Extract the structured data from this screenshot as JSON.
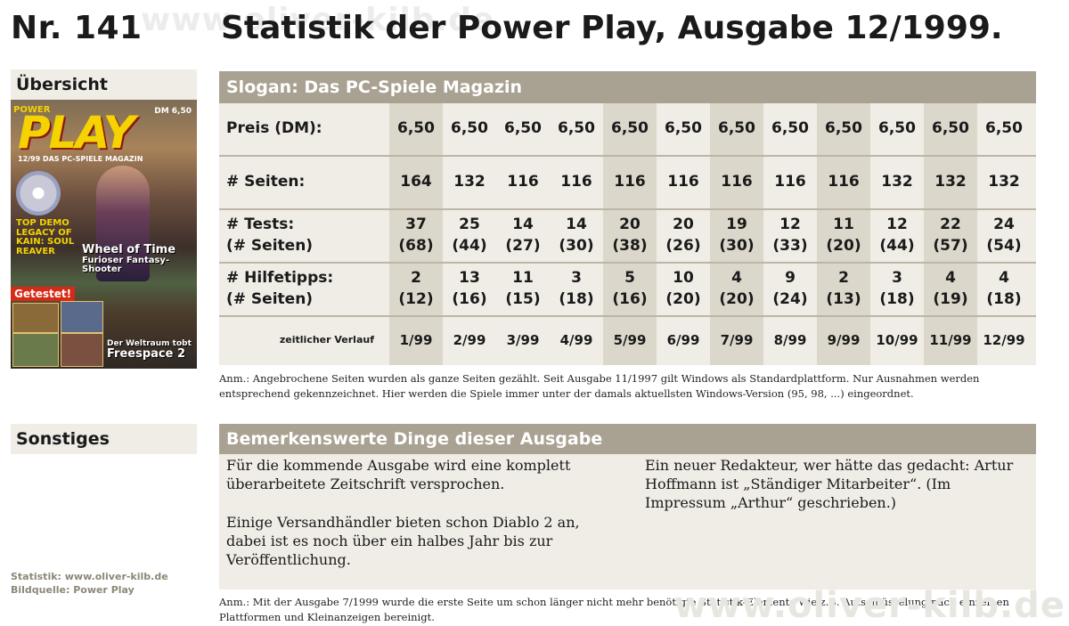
{
  "header": {
    "number": "Nr. 141",
    "title": "Statistik der Power Play, Ausgabe 12/1999.",
    "watermark": "www.oliver-kilb.de"
  },
  "sidebar": {
    "overview_label": "Übersicht",
    "misc_label": "Sonstiges",
    "cover": {
      "magazine_small": "POWER",
      "magazine": "PLAY",
      "price": "DM 6,50",
      "issue_line": "12/99 DAS PC-SPIELE MAGAZIN",
      "demo_title": "TOP DEMO LEGACY OF KAIN: SOUL REAVER",
      "headline1": "Wheel of Time",
      "headline1_sub": "Furioser Fantasy-Shooter",
      "tested": "Getestet!",
      "headline2": "Der Weltraum tobt",
      "headline2_sub": "Freespace 2"
    },
    "credits": [
      "Statistik: www.oliver-kilb.de",
      "Bildquelle: Power Play"
    ]
  },
  "table": {
    "slogan": "Slogan: Das PC-Spiele Magazin",
    "rows": [
      {
        "label": "Preis (DM):",
        "values": [
          "6,50",
          "6,50",
          "6,50",
          "6,50",
          "6,50",
          "6,50",
          "6,50",
          "6,50",
          "6,50",
          "6,50",
          "6,50",
          "6,50"
        ]
      },
      {
        "label": "# Seiten:",
        "values": [
          "164",
          "132",
          "116",
          "116",
          "116",
          "116",
          "116",
          "116",
          "116",
          "132",
          "132",
          "132"
        ]
      },
      {
        "label": "# Tests:",
        "label2": "(# Seiten)",
        "values": [
          "37",
          "25",
          "14",
          "14",
          "20",
          "20",
          "19",
          "12",
          "11",
          "12",
          "22",
          "24"
        ],
        "values2": [
          "(68)",
          "(44)",
          "(27)",
          "(30)",
          "(38)",
          "(26)",
          "(30)",
          "(33)",
          "(20)",
          "(44)",
          "(57)",
          "(54)"
        ]
      },
      {
        "label": "# Hilfetipps:",
        "label2": "(# Seiten)",
        "values": [
          "2",
          "13",
          "11",
          "3",
          "5",
          "10",
          "4",
          "9",
          "2",
          "3",
          "4",
          "4"
        ],
        "values2": [
          "(12)",
          "(16)",
          "(15)",
          "(18)",
          "(16)",
          "(20)",
          "(20)",
          "(24)",
          "(13)",
          "(18)",
          "(19)",
          "(18)"
        ]
      }
    ],
    "timeline_label": "zeitlicher Verlauf",
    "timeline": [
      "1/99",
      "2/99",
      "3/99",
      "4/99",
      "5/99",
      "6/99",
      "7/99",
      "8/99",
      "9/99",
      "10/99",
      "11/99",
      "12/99"
    ],
    "note": "Anm.: Angebrochene Seiten wurden als ganze Seiten gezählt. Seit Ausgabe 11/1997 gilt Windows als Standardplattform. Nur Ausnahmen werden entsprechend gekennzeichnet. Hier werden die Spiele immer unter der damals aktuellsten Windows-Version (95, 98, ...) eingeordnet."
  },
  "notable": {
    "title": "Bemerkenswerte Dinge dieser Ausgabe",
    "left": [
      "Für die kommende Ausgabe wird eine komplett überarbeitete Zeitschrift versprochen.",
      "Einige Versandhändler bieten schon Diablo 2 an, dabei ist es noch über ein halbes Jahr bis zur Veröffentlichung."
    ],
    "right": [
      "Ein neuer Redakteur, wer hätte das gedacht: Artur Hoffmann ist „Ständiger Mitarbeiter“. (Im Impressum „Arthur“ geschrieben.)"
    ],
    "note": "Anm.: Mit der Ausgabe 7/1999 wurde die erste Seite um schon länger nicht mehr benötigte Statistik-Elemente wie z.B. Aufschlüsselung nach einzelnen Plattformen und Kleinanzeigen bereinigt."
  }
}
